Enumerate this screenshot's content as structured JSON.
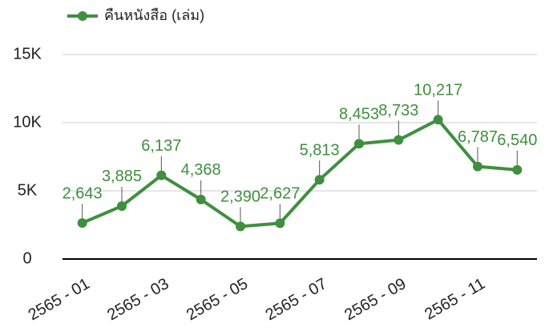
{
  "chart_data": {
    "type": "line",
    "categories": [
      "2565 - 01",
      null,
      "2565 - 03",
      null,
      "2565 - 05",
      null,
      "2565 - 07",
      null,
      "2565 - 09",
      null,
      "2565 - 11",
      null
    ],
    "series": [
      {
        "name": "คืนหนังสือ (เล่ม)",
        "color": "#3f8f3f",
        "values": [
          2643,
          3885,
          6137,
          4368,
          2390,
          2627,
          5813,
          8453,
          8733,
          10217,
          6787,
          6540
        ],
        "value_labels": [
          "2,643",
          "3,885",
          "6,137",
          "4,368",
          "2,390",
          "2,627",
          "5,813",
          "8,453",
          "8,733",
          "10,217",
          "6,787",
          "6,540"
        ]
      }
    ],
    "ylim": [
      0,
      15000
    ],
    "yticks": [
      0,
      {
        "value": 5000,
        "label": "5K"
      },
      {
        "value": 10000,
        "label": "10K"
      },
      {
        "value": 15000,
        "label": "15K"
      }
    ],
    "grid": true,
    "legend": "top-left"
  }
}
